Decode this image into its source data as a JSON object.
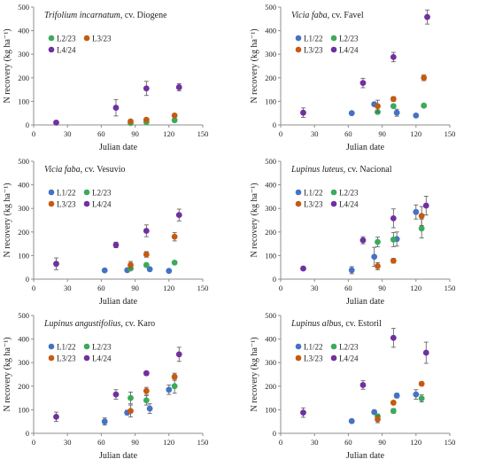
{
  "figure": {
    "ylabel": "N recovery (kg ha⁻¹)",
    "xlabel": "Julian date"
  },
  "colors": {
    "L1/22": "#4472C4",
    "L2/23": "#3BAA5A",
    "L3/23": "#C55A11",
    "L4/24": "#7030A0"
  },
  "chart_data": [
    {
      "type": "scatter",
      "title_species": "Trifolium incarnatum",
      "title_cultivar": ", cv. Diogene",
      "xlabel": "Julian date",
      "ylabel": "N recovery (kg ha⁻¹)",
      "xlim": [
        0,
        150
      ],
      "ylim": [
        0,
        500
      ],
      "xticks": [
        0,
        30,
        60,
        90,
        120,
        150
      ],
      "yticks": [
        0,
        100,
        200,
        300,
        400,
        500
      ],
      "legend_rows": [
        [
          "L2/23",
          "L3/23"
        ],
        [
          "L4/24"
        ]
      ],
      "series": [
        {
          "name": "L2/23",
          "points": [
            [
              86,
              8,
              3
            ],
            [
              100,
              12,
              3
            ],
            [
              125,
              20,
              4
            ]
          ]
        },
        {
          "name": "L3/23",
          "points": [
            [
              86,
              15,
              4
            ],
            [
              100,
              22,
              4
            ],
            [
              125,
              40,
              5
            ]
          ]
        },
        {
          "name": "L4/24",
          "points": [
            [
              20,
              10,
              3
            ],
            [
              73,
              73,
              35
            ],
            [
              100,
              155,
              30
            ],
            [
              129,
              160,
              15
            ]
          ]
        }
      ]
    },
    {
      "type": "scatter",
      "title_species": "Vicia faba",
      "title_cultivar": ", cv. Favel",
      "xlabel": "Julian date",
      "ylabel": "N recovery (kg ha⁻¹)",
      "xlim": [
        0,
        150
      ],
      "ylim": [
        0,
        500
      ],
      "xticks": [
        0,
        30,
        60,
        90,
        120,
        150
      ],
      "yticks": [
        0,
        100,
        200,
        300,
        400,
        500
      ],
      "legend_rows": [
        [
          "L1/22",
          "L2/23"
        ],
        [
          "L3/23",
          "L4/24"
        ]
      ],
      "series": [
        {
          "name": "L1/22",
          "points": [
            [
              63,
              50,
              5
            ],
            [
              83,
              88,
              8
            ],
            [
              103,
              52,
              15
            ],
            [
              120,
              40,
              5
            ]
          ]
        },
        {
          "name": "L2/23",
          "points": [
            [
              86,
              55,
              8
            ],
            [
              100,
              80,
              8
            ],
            [
              127,
              82,
              8
            ]
          ]
        },
        {
          "name": "L3/23",
          "points": [
            [
              86,
              80,
              25
            ],
            [
              100,
              110,
              10
            ],
            [
              127,
              200,
              12
            ]
          ]
        },
        {
          "name": "L4/24",
          "points": [
            [
              20,
              52,
              20
            ],
            [
              73,
              178,
              20
            ],
            [
              100,
              288,
              20
            ],
            [
              130,
              458,
              30
            ]
          ]
        }
      ]
    },
    {
      "type": "scatter",
      "title_species": "Vicia faba",
      "title_cultivar": ", cv. Vesuvio",
      "xlabel": "Julian date",
      "ylabel": "N recovery (kg ha⁻¹)",
      "xlim": [
        0,
        150
      ],
      "ylim": [
        0,
        500
      ],
      "xticks": [
        0,
        30,
        60,
        90,
        120,
        150
      ],
      "yticks": [
        0,
        100,
        200,
        300,
        400,
        500
      ],
      "legend_rows": [
        [
          "L1/22",
          "L2/23"
        ],
        [
          "L3/23",
          "L4/24"
        ]
      ],
      "series": [
        {
          "name": "L1/22",
          "points": [
            [
              63,
              37,
              4
            ],
            [
              83,
              38,
              5
            ],
            [
              103,
              42,
              5
            ],
            [
              120,
              35,
              4
            ]
          ]
        },
        {
          "name": "L2/23",
          "points": [
            [
              86,
              45,
              8
            ],
            [
              100,
              60,
              8
            ],
            [
              125,
              70,
              6
            ]
          ]
        },
        {
          "name": "L3/23",
          "points": [
            [
              86,
              60,
              15
            ],
            [
              100,
              105,
              12
            ],
            [
              125,
              180,
              18
            ]
          ]
        },
        {
          "name": "L4/24",
          "points": [
            [
              20,
              65,
              25
            ],
            [
              73,
              145,
              12
            ],
            [
              100,
              205,
              25
            ],
            [
              129,
              272,
              25
            ]
          ]
        }
      ]
    },
    {
      "type": "scatter",
      "title_species": "Lupinus luteus",
      "title_cultivar": ", cv. Nacional",
      "xlabel": "Julian date",
      "ylabel": "N recovery (kg ha⁻¹)",
      "xlim": [
        0,
        150
      ],
      "ylim": [
        0,
        500
      ],
      "xticks": [
        0,
        30,
        60,
        90,
        120,
        150
      ],
      "yticks": [
        0,
        100,
        200,
        300,
        400,
        500
      ],
      "legend_rows": [
        [
          "L1/22",
          "L2/23"
        ],
        [
          "L3/23",
          "L4/24"
        ]
      ],
      "series": [
        {
          "name": "L1/22",
          "points": [
            [
              63,
              38,
              15
            ],
            [
              83,
              95,
              40
            ],
            [
              103,
              170,
              30
            ],
            [
              120,
              285,
              30
            ]
          ]
        },
        {
          "name": "L2/23",
          "points": [
            [
              86,
              158,
              20
            ],
            [
              100,
              168,
              30
            ],
            [
              125,
              215,
              40
            ]
          ]
        },
        {
          "name": "L3/23",
          "points": [
            [
              86,
              55,
              15
            ],
            [
              100,
              78,
              10
            ],
            [
              125,
              268,
              40
            ]
          ]
        },
        {
          "name": "L4/24",
          "points": [
            [
              20,
              45,
              5
            ],
            [
              73,
              165,
              15
            ],
            [
              100,
              258,
              40
            ],
            [
              129,
              312,
              40
            ]
          ]
        }
      ]
    },
    {
      "type": "scatter",
      "title_species": "Lupinus angustifolius",
      "title_cultivar": ", cv. Karo",
      "xlabel": "Julian date",
      "ylabel": "N recovery (kg ha⁻¹)",
      "xlim": [
        0,
        150
      ],
      "ylim": [
        0,
        500
      ],
      "xticks": [
        0,
        30,
        60,
        90,
        120,
        150
      ],
      "yticks": [
        0,
        100,
        200,
        300,
        400,
        500
      ],
      "legend_rows": [
        [
          "L1/22",
          "L2/23"
        ],
        [
          "L3/23",
          "L4/24"
        ]
      ],
      "series": [
        {
          "name": "L1/22",
          "points": [
            [
              63,
              50,
              15
            ],
            [
              83,
              88,
              10
            ],
            [
              103,
              105,
              20
            ],
            [
              120,
              185,
              20
            ]
          ]
        },
        {
          "name": "L2/23",
          "points": [
            [
              86,
              150,
              25
            ],
            [
              100,
              140,
              20
            ],
            [
              125,
              200,
              30
            ]
          ]
        },
        {
          "name": "L3/23",
          "points": [
            [
              86,
              95,
              25
            ],
            [
              100,
              180,
              15
            ],
            [
              125,
              240,
              15
            ]
          ]
        },
        {
          "name": "L4/24",
          "points": [
            [
              20,
              70,
              20
            ],
            [
              73,
              165,
              20
            ],
            [
              100,
              255,
              8
            ],
            [
              129,
              335,
              30
            ]
          ]
        }
      ]
    },
    {
      "type": "scatter",
      "title_species": "Lupinus albus",
      "title_cultivar": ", cv. Estoril",
      "xlabel": "Julian date",
      "ylabel": "N recovery (kg ha⁻¹)",
      "xlim": [
        0,
        150
      ],
      "ylim": [
        0,
        500
      ],
      "xticks": [
        0,
        30,
        60,
        90,
        120,
        150
      ],
      "yticks": [
        0,
        100,
        200,
        300,
        400,
        500
      ],
      "legend_rows": [
        [
          "L1/22",
          "L2/23"
        ],
        [
          "L3/23",
          "L4/24"
        ]
      ],
      "series": [
        {
          "name": "L1/22",
          "points": [
            [
              63,
              52,
              5
            ],
            [
              83,
              90,
              8
            ],
            [
              103,
              160,
              10
            ],
            [
              120,
              165,
              20
            ]
          ]
        },
        {
          "name": "L2/23",
          "points": [
            [
              86,
              72,
              10
            ],
            [
              100,
              95,
              10
            ],
            [
              125,
              148,
              15
            ]
          ]
        },
        {
          "name": "L3/23",
          "points": [
            [
              86,
              60,
              15
            ],
            [
              100,
              130,
              8
            ],
            [
              125,
              210,
              8
            ]
          ]
        },
        {
          "name": "L4/24",
          "points": [
            [
              20,
              88,
              20
            ],
            [
              73,
              205,
              18
            ],
            [
              100,
              405,
              40
            ],
            [
              129,
              342,
              45
            ]
          ]
        }
      ]
    }
  ]
}
